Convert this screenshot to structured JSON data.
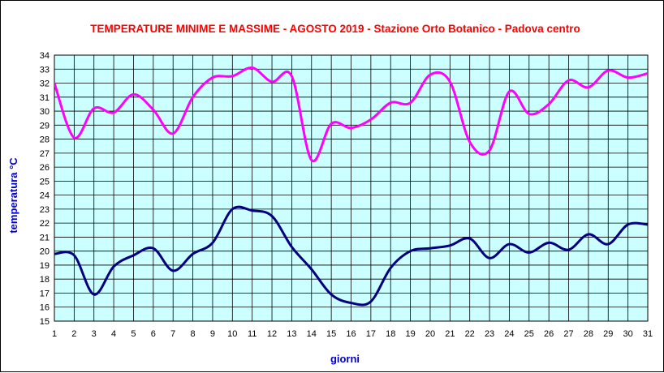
{
  "chart_data": {
    "type": "line",
    "title": "TEMPERATURE MINIME E MASSIME  - AGOSTO 2019 - Stazione Orto Botanico - Padova centro",
    "xlabel": "giorni",
    "ylabel": "temperatura °C",
    "xlim": [
      1,
      31
    ],
    "ylim": [
      15,
      34
    ],
    "x_ticks": [
      1,
      2,
      3,
      4,
      5,
      6,
      7,
      8,
      9,
      10,
      11,
      12,
      13,
      14,
      15,
      16,
      17,
      18,
      19,
      20,
      21,
      22,
      23,
      24,
      25,
      26,
      27,
      28,
      29,
      30,
      31
    ],
    "y_ticks": [
      15,
      16,
      17,
      18,
      19,
      20,
      21,
      22,
      23,
      24,
      25,
      26,
      27,
      28,
      29,
      30,
      31,
      32,
      33,
      34
    ],
    "grid": true,
    "legend": "none",
    "x": [
      1,
      2,
      3,
      4,
      5,
      6,
      7,
      8,
      9,
      10,
      11,
      12,
      13,
      14,
      15,
      16,
      17,
      18,
      19,
      20,
      21,
      22,
      23,
      24,
      25,
      26,
      27,
      28,
      29,
      30,
      31
    ],
    "series": [
      {
        "color": "#ff00ff",
        "values": [
          32.0,
          28.1,
          30.2,
          29.9,
          31.2,
          30.1,
          28.4,
          31.0,
          32.4,
          32.5,
          33.1,
          32.1,
          32.5,
          26.5,
          29.1,
          28.8,
          29.4,
          30.6,
          30.6,
          32.6,
          32.1,
          27.8,
          27.2,
          31.4,
          29.8,
          30.5,
          32.2,
          31.7,
          32.9,
          32.4,
          32.7
        ]
      },
      {
        "color": "#000080",
        "values": [
          19.8,
          19.7,
          16.9,
          18.9,
          19.7,
          20.2,
          18.6,
          19.8,
          20.6,
          23.0,
          22.9,
          22.5,
          20.3,
          18.7,
          16.9,
          16.3,
          16.4,
          18.8,
          20.0,
          20.2,
          20.4,
          20.9,
          19.5,
          20.5,
          19.9,
          20.6,
          20.1,
          21.2,
          20.5,
          21.9,
          21.9
        ]
      }
    ],
    "colors": {
      "plot_background": "#ccffff",
      "title": "#ff0000",
      "axis_title": "#0000cc",
      "grid": "#000000"
    }
  }
}
